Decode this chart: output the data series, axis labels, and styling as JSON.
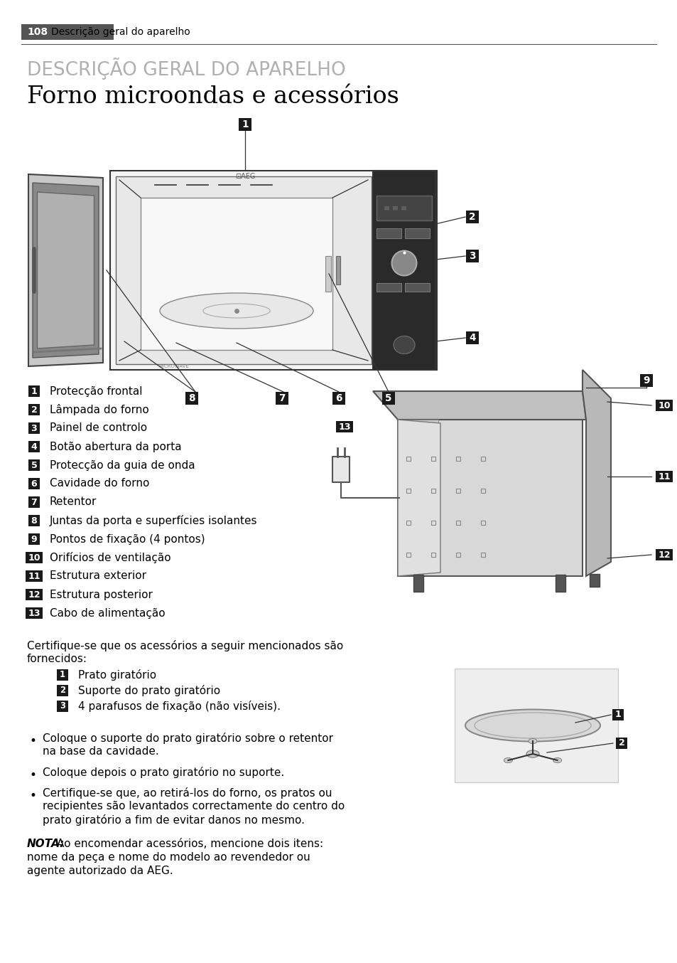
{
  "page_number": "108",
  "header_text": "Descrição geral do aparelho",
  "section_title": "DESCRIÇÃO GERAL DO APARELHO",
  "section_subtitle": "Forno microondas e acessórios",
  "items_main": [
    {
      "num": "1",
      "text": "Protecção frontal"
    },
    {
      "num": "2",
      "text": "Lâmpada do forno"
    },
    {
      "num": "3",
      "text": "Painel de controlo"
    },
    {
      "num": "4",
      "text": "Botão abertura da porta"
    },
    {
      "num": "5",
      "text": "Protecção da guia de onda"
    },
    {
      "num": "6",
      "text": "Cavidade do forno"
    },
    {
      "num": "7",
      "text": "Retentor"
    },
    {
      "num": "8",
      "text": "Juntas da porta e superfícies isolantes"
    },
    {
      "num": "9",
      "text": "Pontos de fixação (4 pontos)"
    },
    {
      "num": "10",
      "text": "Orifícios de ventilação"
    },
    {
      "num": "11",
      "text": "Estrutura exterior"
    },
    {
      "num": "12",
      "text": "Estrutura posterior"
    },
    {
      "num": "13",
      "text": "Cabo de alimentação"
    }
  ],
  "accessories_intro_line1": "Certifique-se que os acessórios a seguir mencionados são",
  "accessories_intro_line2": "fornecidos:",
  "items_accessories": [
    {
      "num": "1",
      "text": "Prato giratório"
    },
    {
      "num": "2",
      "text": "Suporte do prato giratório"
    },
    {
      "num": "3",
      "text": "4 parafusos de fixação (não visíveis)."
    }
  ],
  "bullets": [
    [
      "Coloque o suporte do prato giratório sobre o retentor",
      "na base da cavidade."
    ],
    [
      "Coloque depois o prato giratório no suporte."
    ],
    [
      "Certifique-se que, ao retirá-los do forno, os pratos ou",
      "recipientes são levantados correctamente do centro do",
      "prato giratório a fim de evitar danos no mesmo."
    ]
  ],
  "nota_bold": "NOTA:",
  "nota_lines": [
    "  Ao encomendar acessórios, mencione dois itens:",
    "nome da peça e nome do modelo ao revendedor ou",
    "agente autorizado da AEG."
  ],
  "bg_color": "#ffffff",
  "text_color": "#000000",
  "header_bg": "#555555",
  "header_fg": "#ffffff",
  "label_bg": "#1a1a1a",
  "label_fg": "#ffffff",
  "title_color": "#b0b0b0",
  "line_color": "#333333"
}
